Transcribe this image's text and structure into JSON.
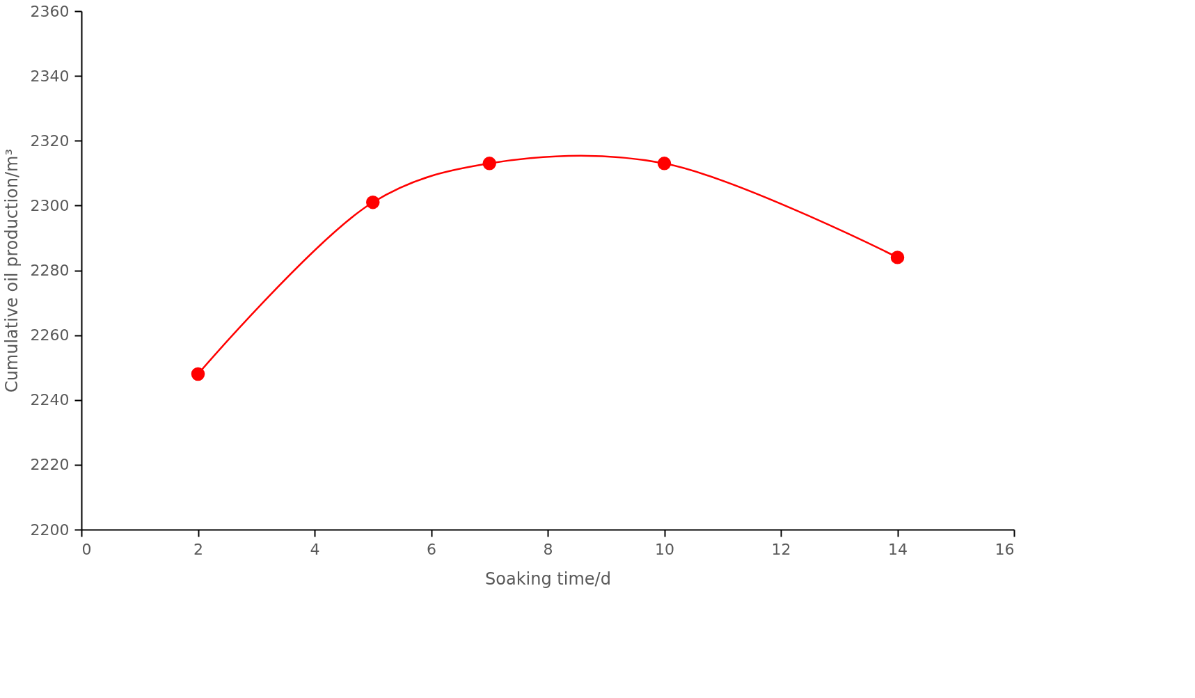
{
  "chart_data": {
    "type": "line",
    "xlabel": "Soaking time/d",
    "ylabel": "Cumulative oil production/m³",
    "x": [
      2,
      5,
      7,
      10,
      14
    ],
    "series": [
      {
        "color": "#ff0000",
        "values": [
          2248,
          2301,
          2313,
          2313,
          2284
        ]
      }
    ],
    "xlim": [
      0,
      16
    ],
    "xticks": [
      0,
      2,
      4,
      6,
      8,
      10,
      12,
      14,
      16
    ],
    "ylim": [
      2200,
      2360
    ],
    "yticks": [
      2200,
      2220,
      2240,
      2260,
      2280,
      2300,
      2320,
      2340,
      2360
    ],
    "grid": false,
    "marker": "circle",
    "line_style": "solid"
  }
}
